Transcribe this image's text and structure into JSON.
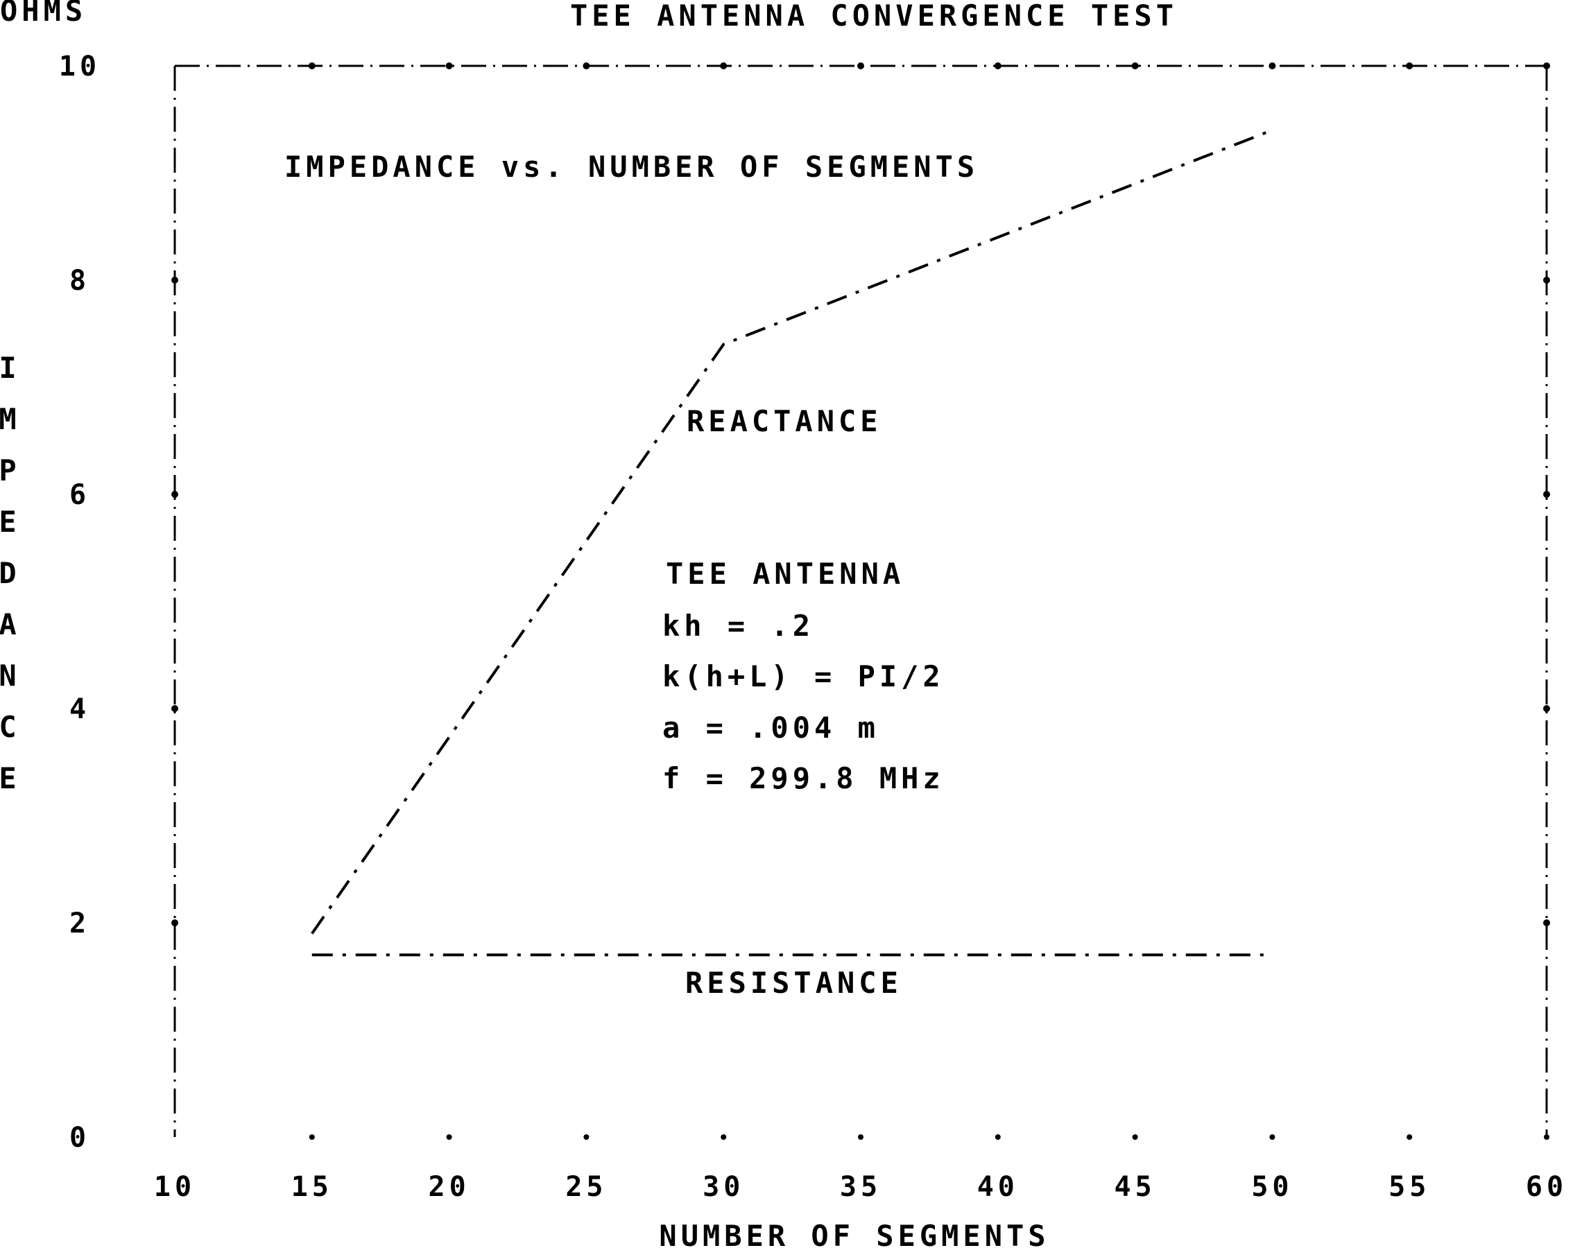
{
  "chart_data": {
    "type": "line",
    "title": "TEE ANTENNA CONVERGENCE TEST",
    "subtitle": "IMPEDANCE vs. NUMBER OF SEGMENTS",
    "ylabel": "IMPEDANCE",
    "yunit": "OHMS",
    "xlabel": "NUMBER OF SEGMENTS",
    "xlim": [
      10,
      60
    ],
    "ylim": [
      0,
      10
    ],
    "xticks": [
      10,
      15,
      20,
      25,
      30,
      35,
      40,
      45,
      50,
      55,
      60
    ],
    "yticks": [
      0,
      2,
      4,
      6,
      8,
      10
    ],
    "xtick_labels": [
      "10",
      "15",
      "20",
      "25",
      "30",
      "35",
      "40",
      "45",
      "50",
      "55",
      "60"
    ],
    "ytick_labels": [
      "0",
      "2",
      "4",
      "6",
      "8",
      "10"
    ],
    "x": [
      15,
      30,
      50
    ],
    "series": [
      {
        "name": "REACTANCE",
        "values": [
          1.9,
          7.4,
          9.4
        ]
      },
      {
        "name": "RESISTANCE",
        "values": [
          1.7,
          1.7,
          1.7
        ]
      }
    ],
    "annotations": [
      "TEE ANTENNA",
      "kh = .2",
      "k(h+L) = PI/2",
      "a = .004 m",
      "f = 299.8 MHz"
    ],
    "grid": false,
    "legend": "none"
  },
  "colors": {
    "ink": "#000000",
    "background": "#ffffff"
  }
}
